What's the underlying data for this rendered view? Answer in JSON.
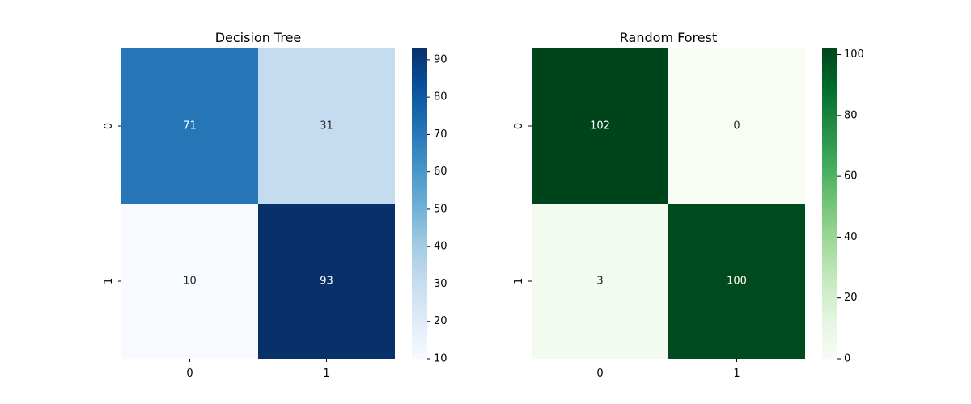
{
  "chart_data": [
    {
      "type": "heatmap",
      "title": "Decision Tree",
      "x_categories": [
        "0",
        "1"
      ],
      "y_categories": [
        "0",
        "1"
      ],
      "matrix": [
        [
          71,
          31
        ],
        [
          10,
          93
        ]
      ],
      "colormap": "Blues",
      "colors": [
        "#f7fbff",
        "#deebf7",
        "#c6dbef",
        "#9ecae1",
        "#6baed6",
        "#4292c6",
        "#2171b5",
        "#08519c",
        "#08306b"
      ],
      "colorbar": {
        "range": [
          10,
          93
        ],
        "ticks": [
          10,
          20,
          30,
          40,
          50,
          60,
          70,
          80,
          90
        ]
      },
      "xlabel": "",
      "ylabel": ""
    },
    {
      "type": "heatmap",
      "title": "Random Forest",
      "x_categories": [
        "0",
        "1"
      ],
      "y_categories": [
        "0",
        "1"
      ],
      "matrix": [
        [
          102,
          0
        ],
        [
          3,
          100
        ]
      ],
      "colormap": "Greens",
      "colors": [
        "#f7fcf5",
        "#e5f5e0",
        "#c7e9c0",
        "#a1d99b",
        "#74c476",
        "#41ab5d",
        "#238b45",
        "#006d2c",
        "#00441b"
      ],
      "colorbar": {
        "range": [
          0,
          102
        ],
        "ticks": [
          0,
          20,
          40,
          60,
          80,
          100
        ]
      },
      "xlabel": "",
      "ylabel": ""
    }
  ]
}
